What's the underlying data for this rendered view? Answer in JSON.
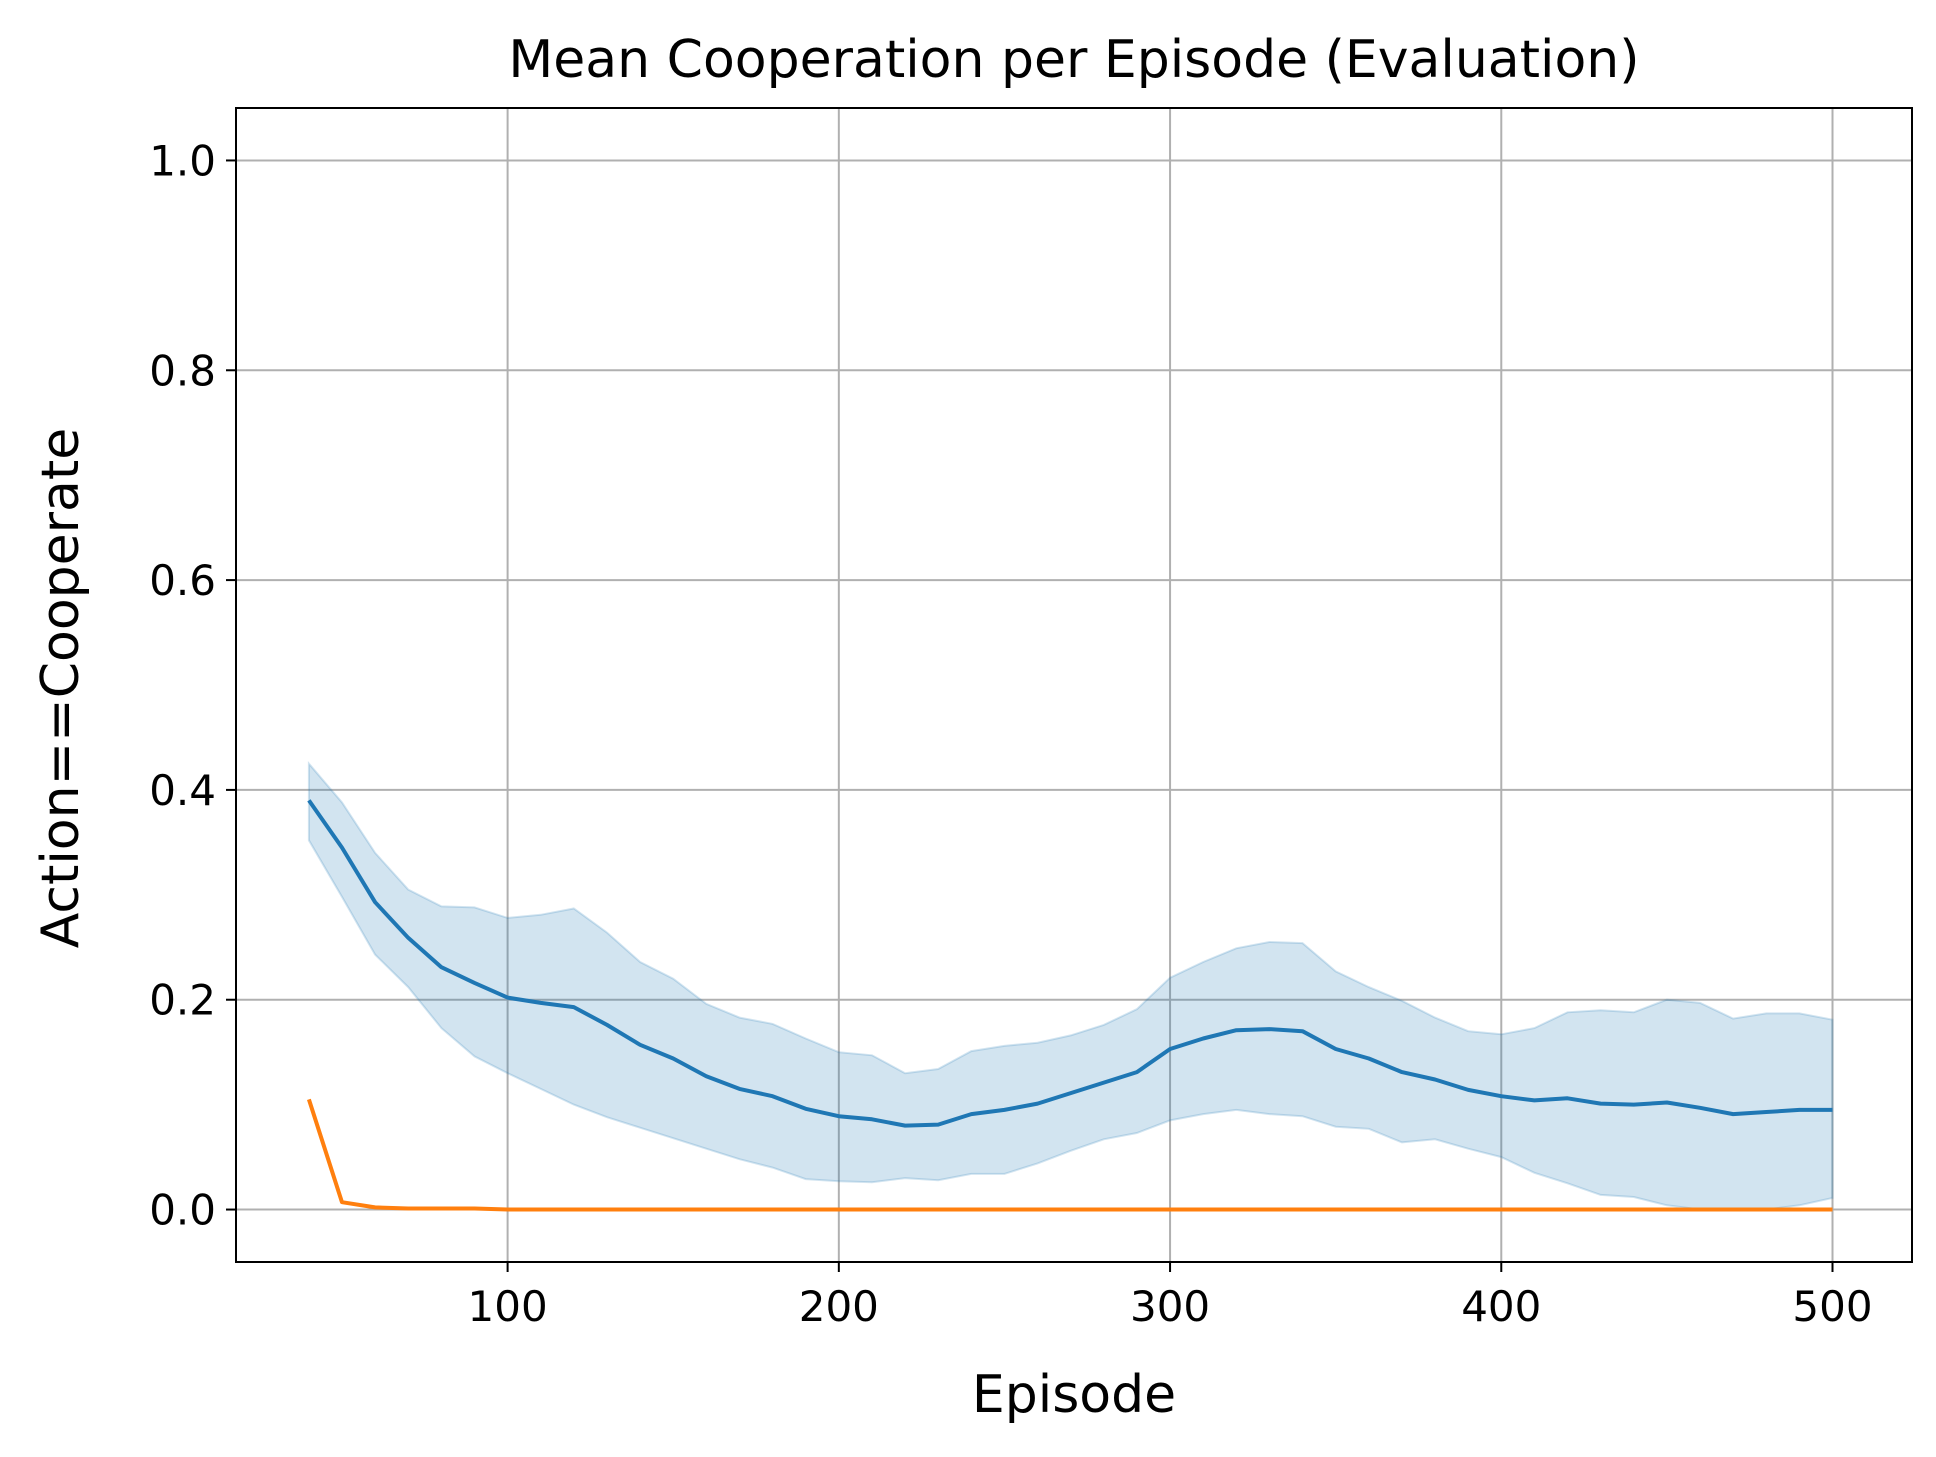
{
  "chart_data": {
    "type": "line",
    "title": "Mean Cooperation per Episode (Evaluation)",
    "xlabel": "Episode",
    "ylabel": "Action==Cooperate",
    "xlim": [
      18,
      524
    ],
    "ylim": [
      -0.05,
      1.05
    ],
    "xticks": [
      100,
      200,
      300,
      400,
      500
    ],
    "yticks": [
      0.0,
      0.2,
      0.4,
      0.6,
      0.8,
      1.0
    ],
    "xtick_labels": [
      "100",
      "200",
      "300",
      "400",
      "500"
    ],
    "ytick_labels": [
      "0.0",
      "0.2",
      "0.4",
      "0.6",
      "0.8",
      "1.0"
    ],
    "grid": true,
    "x": [
      40,
      50,
      60,
      70,
      80,
      90,
      100,
      110,
      120,
      130,
      140,
      150,
      160,
      170,
      180,
      190,
      200,
      210,
      220,
      230,
      240,
      250,
      260,
      270,
      280,
      290,
      300,
      310,
      320,
      330,
      340,
      350,
      360,
      370,
      380,
      390,
      400,
      410,
      420,
      430,
      440,
      450,
      460,
      470,
      480,
      490,
      500
    ],
    "series": [
      {
        "color": "#1f77b4",
        "band_color": "#1f77b4",
        "values": [
          0.39,
          0.345,
          0.293,
          0.259,
          0.231,
          0.216,
          0.202,
          0.197,
          0.193,
          0.176,
          0.157,
          0.144,
          0.127,
          0.115,
          0.108,
          0.096,
          0.089,
          0.086,
          0.08,
          0.081,
          0.091,
          0.095,
          0.101,
          0.111,
          0.121,
          0.131,
          0.153,
          0.163,
          0.171,
          0.172,
          0.17,
          0.153,
          0.144,
          0.131,
          0.124,
          0.114,
          0.108,
          0.104,
          0.106,
          0.101,
          0.1,
          0.102,
          0.097,
          0.091,
          0.093,
          0.095,
          0.095
        ],
        "lower": [
          0.352,
          0.298,
          0.243,
          0.212,
          0.173,
          0.146,
          0.13,
          0.115,
          0.1,
          0.088,
          0.078,
          0.068,
          0.058,
          0.048,
          0.04,
          0.029,
          0.027,
          0.026,
          0.03,
          0.028,
          0.034,
          0.034,
          0.044,
          0.056,
          0.067,
          0.073,
          0.085,
          0.091,
          0.095,
          0.091,
          0.089,
          0.079,
          0.077,
          0.064,
          0.067,
          0.058,
          0.05,
          0.035,
          0.025,
          0.014,
          0.012,
          0.004,
          0.0,
          0.0,
          0.0,
          0.004,
          0.011
        ],
        "upper": [
          0.425,
          0.388,
          0.34,
          0.305,
          0.289,
          0.288,
          0.278,
          0.281,
          0.287,
          0.264,
          0.236,
          0.22,
          0.196,
          0.183,
          0.177,
          0.163,
          0.15,
          0.147,
          0.13,
          0.134,
          0.151,
          0.156,
          0.159,
          0.166,
          0.176,
          0.191,
          0.221,
          0.236,
          0.249,
          0.255,
          0.254,
          0.227,
          0.212,
          0.199,
          0.183,
          0.17,
          0.167,
          0.173,
          0.188,
          0.19,
          0.188,
          0.2,
          0.197,
          0.182,
          0.187,
          0.187,
          0.181
        ]
      },
      {
        "color": "#ff7f0e",
        "values": [
          0.105,
          0.007,
          0.002,
          0.001,
          0.001,
          0.001,
          0.0,
          0.0,
          0.0,
          0.0,
          0.0,
          0.0,
          0.0,
          0.0,
          0.0,
          0.0,
          0.0,
          0.0,
          0.0,
          0.0,
          0.0,
          0.0,
          0.0,
          0.0,
          0.0,
          0.0,
          0.0,
          0.0,
          0.0,
          0.0,
          0.0,
          0.0,
          0.0,
          0.0,
          0.0,
          0.0,
          0.0,
          0.0,
          0.0,
          0.0,
          0.0,
          0.0,
          0.0,
          0.0,
          0.0,
          0.0,
          0.0
        ]
      }
    ]
  }
}
